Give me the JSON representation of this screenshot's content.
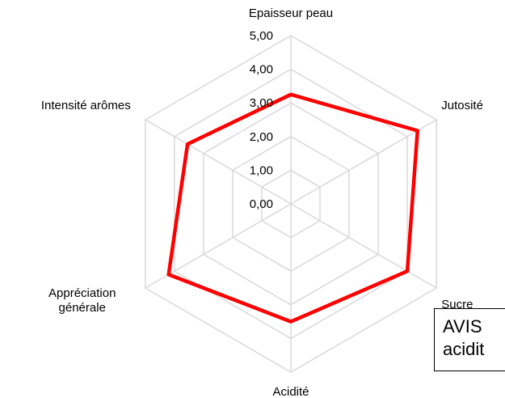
{
  "chart_data": {
    "type": "radar",
    "categories": [
      "Epaisseur peau",
      "Jutosité",
      "Sucre",
      "Acidité",
      "Appréciation générale",
      "Intensité arômes"
    ],
    "series": [
      {
        "color": "#ff0000",
        "values": [
          3.25,
          4.35,
          4.0,
          3.5,
          4.2,
          3.55
        ]
      }
    ],
    "ylim": [
      0,
      5
    ],
    "yticks": [
      {
        "value": 0,
        "label": "0,00"
      },
      {
        "value": 1,
        "label": "1,00"
      },
      {
        "value": 2,
        "label": "2,00"
      },
      {
        "value": 3,
        "label": "3,00"
      },
      {
        "value": 4,
        "label": "4,00"
      },
      {
        "value": 5,
        "label": "5,00"
      }
    ],
    "grid": true,
    "annotations": [
      "AVIS",
      "acidit"
    ]
  }
}
